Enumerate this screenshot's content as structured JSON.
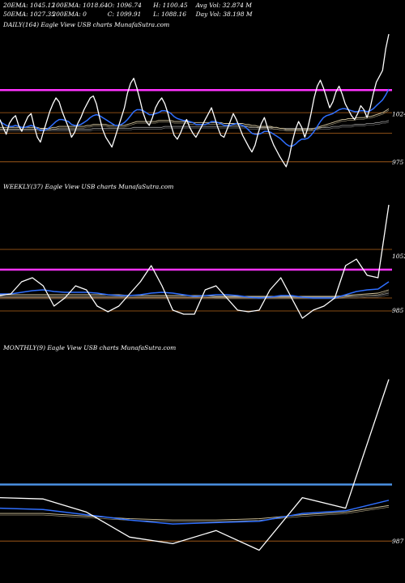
{
  "header": {
    "row1": [
      "20EMA: 1045.12",
      "100EMA: 1018.64",
      "O: 1096.74",
      "H: 1100.45",
      "Avg Vol: 32.874  M"
    ],
    "row2": [
      "50EMA: 1027.35",
      "200EMA: 0",
      "C: 1099.91",
      "L: 1088.16",
      "Day Vol: 38.198  M"
    ]
  },
  "colors": {
    "background": "#000000",
    "price": "#ffffff",
    "ema_fast": "#2f6fff",
    "ema_slow": "#d8c9a0",
    "ema_other": "#a0a0a0",
    "level_magenta": "#ff33ff",
    "level_orange": "#b5651d",
    "level_blue": "#4a90e2"
  },
  "chart_data": [
    {
      "type": "line",
      "title": "DAILY(164) Eagle  View  USB charts MunafaSutra.com",
      "ylim": [
        960,
        1110
      ],
      "y_ticks": [
        {
          "value": 1024,
          "label": "1024"
        },
        {
          "value": 975,
          "label": "975"
        }
      ],
      "levels": [
        {
          "value": 1048,
          "color": "#ff33ff"
        },
        {
          "value": 1025,
          "color": "#b5651d"
        },
        {
          "value": 1004,
          "color": "#b5651d"
        },
        {
          "value": 975,
          "color": "#b5651d"
        }
      ],
      "series": [
        {
          "role": "price",
          "values": [
            1018,
            1010,
            1003,
            1014,
            1019,
            1022,
            1012,
            1006,
            1014,
            1021,
            1024,
            1011,
            1000,
            995,
            1006,
            1016,
            1026,
            1034,
            1040,
            1036,
            1026,
            1018,
            1010,
            1000,
            1005,
            1014,
            1020,
            1028,
            1034,
            1040,
            1042,
            1034,
            1020,
            1008,
            1000,
            995,
            990,
            1000,
            1010,
            1020,
            1030,
            1045,
            1055,
            1060,
            1050,
            1038,
            1025,
            1016,
            1012,
            1020,
            1030,
            1036,
            1040,
            1034,
            1024,
            1012,
            1002,
            998,
            1004,
            1012,
            1018,
            1010,
            1004,
            1000,
            1006,
            1012,
            1018,
            1024,
            1030,
            1020,
            1010,
            1002,
            1000,
            1008,
            1016,
            1024,
            1018,
            1010,
            1002,
            996,
            990,
            985,
            992,
            1004,
            1014,
            1020,
            1010,
            1000,
            992,
            986,
            980,
            975,
            970,
            980,
            996,
            1008,
            1016,
            1010,
            1000,
            1010,
            1024,
            1040,
            1052,
            1058,
            1050,
            1040,
            1030,
            1036,
            1046,
            1052,
            1044,
            1034,
            1028,
            1022,
            1018,
            1024,
            1032,
            1028,
            1020,
            1030,
            1044,
            1056,
            1062,
            1068,
            1090,
            1105
          ]
        },
        {
          "role": "ema_fast",
          "values": [
            1016,
            1014,
            1012,
            1011,
            1011,
            1012,
            1011,
            1010,
            1010,
            1011,
            1012,
            1011,
            1009,
            1007,
            1007,
            1008,
            1010,
            1013,
            1016,
            1018,
            1018,
            1017,
            1016,
            1013,
            1012,
            1012,
            1013,
            1015,
            1017,
            1020,
            1022,
            1023,
            1022,
            1020,
            1018,
            1016,
            1014,
            1012,
            1012,
            1013,
            1015,
            1018,
            1022,
            1026,
            1028,
            1028,
            1027,
            1025,
            1023,
            1023,
            1024,
            1025,
            1027,
            1027,
            1026,
            1024,
            1021,
            1019,
            1018,
            1017,
            1017,
            1016,
            1015,
            1013,
            1013,
            1013,
            1013,
            1014,
            1016,
            1016,
            1015,
            1014,
            1012,
            1012,
            1012,
            1013,
            1014,
            1013,
            1012,
            1010,
            1007,
            1004,
            1003,
            1003,
            1004,
            1006,
            1006,
            1005,
            1003,
            1001,
            999,
            996,
            993,
            991,
            991,
            993,
            996,
            998,
            998,
            999,
            1002,
            1006,
            1011,
            1016,
            1020,
            1022,
            1023,
            1024,
            1026,
            1028,
            1029,
            1029,
            1028,
            1027,
            1026,
            1026,
            1027,
            1027,
            1026,
            1027,
            1029,
            1032,
            1035,
            1038,
            1043,
            1049
          ]
        },
        {
          "role": "ema_slow",
          "values": [
            1010,
            1010,
            1010,
            1010,
            1010,
            1010,
            1010,
            1010,
            1010,
            1010,
            1010,
            1010,
            1010,
            1009,
            1009,
            1009,
            1009,
            1010,
            1010,
            1011,
            1011,
            1011,
            1011,
            1011,
            1011,
            1011,
            1011,
            1011,
            1012,
            1012,
            1013,
            1013,
            1013,
            1013,
            1013,
            1012,
            1012,
            1012,
            1012,
            1012,
            1012,
            1013,
            1014,
            1015,
            1016,
            1016,
            1016,
            1016,
            1016,
            1016,
            1016,
            1017,
            1017,
            1017,
            1017,
            1017,
            1016,
            1016,
            1016,
            1016,
            1016,
            1015,
            1015,
            1015,
            1015,
            1015,
            1015,
            1015,
            1015,
            1015,
            1015,
            1015,
            1014,
            1014,
            1014,
            1014,
            1014,
            1014,
            1014,
            1013,
            1013,
            1012,
            1012,
            1011,
            1011,
            1011,
            1011,
            1011,
            1010,
            1010,
            1009,
            1009,
            1008,
            1008,
            1008,
            1008,
            1008,
            1008,
            1008,
            1008,
            1008,
            1009,
            1010,
            1011,
            1012,
            1013,
            1014,
            1015,
            1016,
            1017,
            1018,
            1018,
            1019,
            1019,
            1019,
            1020,
            1020,
            1020,
            1021,
            1021,
            1022,
            1023,
            1024,
            1025,
            1027,
            1029
          ]
        },
        {
          "role": "ema_other",
          "values": [
            1008,
            1008,
            1008,
            1008,
            1008,
            1008,
            1008,
            1008,
            1008,
            1008,
            1008,
            1008,
            1008,
            1008,
            1008,
            1008,
            1008,
            1008,
            1008,
            1008,
            1008,
            1008,
            1008,
            1008,
            1008,
            1008,
            1008,
            1008,
            1008,
            1008,
            1009,
            1009,
            1009,
            1009,
            1009,
            1009,
            1009,
            1009,
            1009,
            1009,
            1009,
            1009,
            1009,
            1010,
            1010,
            1010,
            1010,
            1010,
            1010,
            1010,
            1010,
            1010,
            1010,
            1011,
            1011,
            1011,
            1011,
            1011,
            1011,
            1011,
            1011,
            1011,
            1011,
            1011,
            1011,
            1011,
            1011,
            1011,
            1011,
            1011,
            1011,
            1011,
            1011,
            1011,
            1011,
            1011,
            1011,
            1011,
            1011,
            1011,
            1010,
            1010,
            1010,
            1010,
            1010,
            1010,
            1010,
            1010,
            1010,
            1010,
            1009,
            1009,
            1009,
            1009,
            1009,
            1009,
            1009,
            1009,
            1009,
            1009,
            1009,
            1009,
            1009,
            1010,
            1010,
            1010,
            1010,
            1011,
            1011,
            1011,
            1012,
            1012,
            1012,
            1012,
            1013,
            1013,
            1013,
            1013,
            1014,
            1014,
            1014,
            1015,
            1015,
            1016,
            1016,
            1017
          ]
        }
      ]
    },
    {
      "type": "line",
      "title": "WEEKLY(37) Eagle  View  USB charts MunafaSutra.com",
      "ylim": [
        950,
        1130
      ],
      "y_ticks": [
        {
          "value": 1052,
          "label": "1052"
        },
        {
          "value": 985,
          "label": "985"
        }
      ],
      "levels": [
        {
          "value": 1060,
          "color": "#b5651d"
        },
        {
          "value": 1035,
          "color": "#ff33ff"
        },
        {
          "value": 1000,
          "color": "#b5651d"
        },
        {
          "value": 984,
          "color": "#b5651d"
        }
      ],
      "series": [
        {
          "role": "price",
          "values": [
            1003,
            1005,
            1020,
            1025,
            1015,
            990,
            1000,
            1015,
            1010,
            990,
            983,
            990,
            1005,
            1020,
            1040,
            1015,
            985,
            980,
            980,
            1010,
            1015,
            1000,
            985,
            983,
            985,
            1010,
            1025,
            1000,
            975,
            985,
            990,
            1000,
            1040,
            1048,
            1028,
            1025,
            1115
          ]
        },
        {
          "role": "ema_fast",
          "values": [
            1005,
            1005,
            1007,
            1009,
            1010,
            1008,
            1007,
            1007,
            1007,
            1006,
            1004,
            1003,
            1003,
            1004,
            1006,
            1007,
            1006,
            1004,
            1002,
            1003,
            1004,
            1004,
            1003,
            1001,
            1000,
            1001,
            1003,
            1003,
            1001,
            1000,
            1000,
            1000,
            1004,
            1008,
            1010,
            1011,
            1020
          ]
        },
        {
          "role": "ema_slow",
          "values": [
            1004,
            1004,
            1004,
            1004,
            1004,
            1004,
            1004,
            1004,
            1004,
            1004,
            1004,
            1004,
            1003,
            1003,
            1003,
            1003,
            1003,
            1003,
            1003,
            1003,
            1002,
            1002,
            1002,
            1002,
            1002,
            1002,
            1002,
            1002,
            1002,
            1002,
            1002,
            1002,
            1003,
            1004,
            1005,
            1006,
            1010
          ]
        },
        {
          "role": "ema_other",
          "values": [
            1001,
            1001,
            1001,
            1001,
            1001,
            1001,
            1001,
            1001,
            1001,
            1001,
            1001,
            1001,
            1001,
            1001,
            1001,
            1001,
            1001,
            1001,
            1001,
            1001,
            1001,
            1001,
            1001,
            1001,
            1001,
            1001,
            1001,
            1001,
            1001,
            1001,
            1001,
            1001,
            1002,
            1002,
            1003,
            1003,
            1006
          ]
        }
      ]
    },
    {
      "type": "line",
      "title": "MONTHLY(9) Eagle  View  USB charts MunafaSutra.com",
      "ylim": [
        960,
        1130
      ],
      "y_ticks": [
        {
          "value": 987,
          "label": "987"
        }
      ],
      "levels": [
        {
          "value": 1030,
          "color": "#4a90e2"
        },
        {
          "value": 987,
          "color": "#b5651d"
        }
      ],
      "series": [
        {
          "role": "price",
          "values": [
            1020,
            1019,
            1009,
            990,
            985,
            995,
            980,
            1020,
            1012,
            1110
          ]
        },
        {
          "role": "ema_fast",
          "values": [
            1012,
            1011,
            1007,
            1003,
            1000,
            1001,
            1002,
            1008,
            1010,
            1018
          ]
        },
        {
          "role": "ema_slow",
          "values": [
            1008,
            1008,
            1006,
            1004,
            1003,
            1003,
            1004,
            1007,
            1009,
            1014
          ]
        }
      ]
    }
  ]
}
